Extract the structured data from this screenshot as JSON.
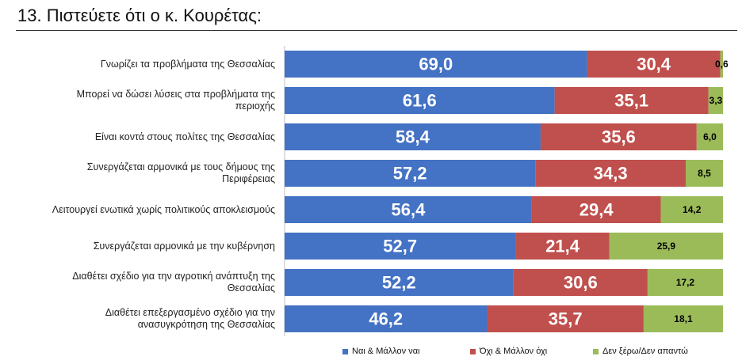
{
  "title": "13. Πιστεύετε ότι ο κ. Κουρέτας:",
  "colors": {
    "yes": "#4472C4",
    "no": "#C0504D",
    "dk": "#9BBB59"
  },
  "chart_data": {
    "type": "bar",
    "orientation": "horizontal",
    "stacked": true,
    "title": "13. Πιστεύετε ότι ο κ. Κουρέτας:",
    "categories": [
      "Γνωρίζει τα προβλήματα της Θεσσαλίας",
      "Μπορεί να δώσει λύσεις στα προβλήματα της περιοχής",
      "Είναι κοντά στους πολίτες της Θεσσαλίας",
      "Συνεργάζεται αρμονικά με τους δήμους της Περιφέρειας",
      "Λειτουργεί ενωτικά χωρίς πολιτικούς αποκλεισμούς",
      "Συνεργάζεται αρμονικά με την κυβέρνηση",
      "Διαθέτει σχέδιο για την αγροτική ανάπτυξη της Θεσσαλίας",
      "Διαθέτει επεξεργασμένο σχέδιο για την ανασυγκρότηση της Θεσσαλίας"
    ],
    "series": [
      {
        "name": "Ναι & Μάλλον ναι",
        "values": [
          69.0,
          61.6,
          58.4,
          57.2,
          56.4,
          52.7,
          52.2,
          46.2
        ]
      },
      {
        "name": "Όχι & Μάλλον όχι",
        "values": [
          30.4,
          35.1,
          35.6,
          34.3,
          29.4,
          21.4,
          30.6,
          35.7
        ]
      },
      {
        "name": "Δεν ξέρω/Δεν απαντώ",
        "values": [
          0.6,
          3.3,
          6.0,
          8.5,
          14.2,
          25.9,
          17.2,
          18.1
        ]
      }
    ],
    "value_labels": [
      [
        "69,0",
        "30,4",
        "0,6"
      ],
      [
        "61,6",
        "35,1",
        "3,3"
      ],
      [
        "58,4",
        "35,6",
        "6,0"
      ],
      [
        "57,2",
        "34,3",
        "8,5"
      ],
      [
        "56,4",
        "29,4",
        "14,2"
      ],
      [
        "52,7",
        "21,4",
        "25,9"
      ],
      [
        "52,2",
        "30,6",
        "17,2"
      ],
      [
        "46,2",
        "35,7",
        "18,1"
      ]
    ],
    "xlim": [
      0,
      100
    ],
    "legend_position": "bottom"
  }
}
